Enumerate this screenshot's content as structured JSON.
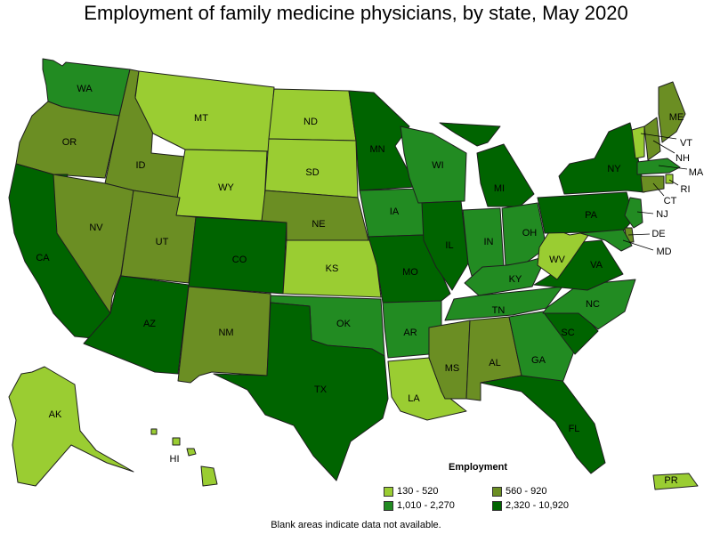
{
  "title": "Employment of family medicine physicians, by state, May 2020",
  "legend": {
    "title": "Employment",
    "items": [
      {
        "label": "130 - 520",
        "color": "#9ACD32"
      },
      {
        "label": "560 - 920",
        "color": "#6B8E23"
      },
      {
        "label": "1,010 - 2,270",
        "color": "#228B22"
      },
      {
        "label": "2,320 - 10,920",
        "color": "#006400"
      }
    ]
  },
  "note": "Blank areas indicate data not available.",
  "states": [
    {
      "code": "WA",
      "bin": 2
    },
    {
      "code": "OR",
      "bin": 1
    },
    {
      "code": "CA",
      "bin": 3
    },
    {
      "code": "ID",
      "bin": 1
    },
    {
      "code": "NV",
      "bin": 1
    },
    {
      "code": "MT",
      "bin": 0
    },
    {
      "code": "WY",
      "bin": 0
    },
    {
      "code": "UT",
      "bin": 1
    },
    {
      "code": "AZ",
      "bin": 3
    },
    {
      "code": "CO",
      "bin": 3
    },
    {
      "code": "NM",
      "bin": 1
    },
    {
      "code": "ND",
      "bin": 0
    },
    {
      "code": "SD",
      "bin": 0
    },
    {
      "code": "NE",
      "bin": 1
    },
    {
      "code": "KS",
      "bin": 0
    },
    {
      "code": "OK",
      "bin": 2
    },
    {
      "code": "TX",
      "bin": 3
    },
    {
      "code": "MN",
      "bin": 3
    },
    {
      "code": "IA",
      "bin": 2
    },
    {
      "code": "MO",
      "bin": 3
    },
    {
      "code": "AR",
      "bin": 2
    },
    {
      "code": "LA",
      "bin": 0
    },
    {
      "code": "WI",
      "bin": 2
    },
    {
      "code": "IL",
      "bin": 3
    },
    {
      "code": "MI",
      "bin": 3
    },
    {
      "code": "IN",
      "bin": 2
    },
    {
      "code": "OH",
      "bin": 2
    },
    {
      "code": "KY",
      "bin": 2
    },
    {
      "code": "TN",
      "bin": 2
    },
    {
      "code": "MS",
      "bin": 1
    },
    {
      "code": "AL",
      "bin": 1
    },
    {
      "code": "GA",
      "bin": 2
    },
    {
      "code": "FL",
      "bin": 3
    },
    {
      "code": "SC",
      "bin": 3
    },
    {
      "code": "NC",
      "bin": 2
    },
    {
      "code": "VA",
      "bin": 3
    },
    {
      "code": "WV",
      "bin": 0
    },
    {
      "code": "PA",
      "bin": 3
    },
    {
      "code": "NY",
      "bin": 3
    },
    {
      "code": "ME",
      "bin": 1
    },
    {
      "code": "VT",
      "bin": 0
    },
    {
      "code": "NH",
      "bin": 1
    },
    {
      "code": "MA",
      "bin": 2
    },
    {
      "code": "RI",
      "bin": 0
    },
    {
      "code": "CT",
      "bin": 1
    },
    {
      "code": "NJ",
      "bin": 2
    },
    {
      "code": "DE",
      "bin": 1
    },
    {
      "code": "MD",
      "bin": 2
    },
    {
      "code": "AK",
      "bin": 0
    },
    {
      "code": "HI",
      "bin": 0
    },
    {
      "code": "PR",
      "bin": 0
    }
  ]
}
